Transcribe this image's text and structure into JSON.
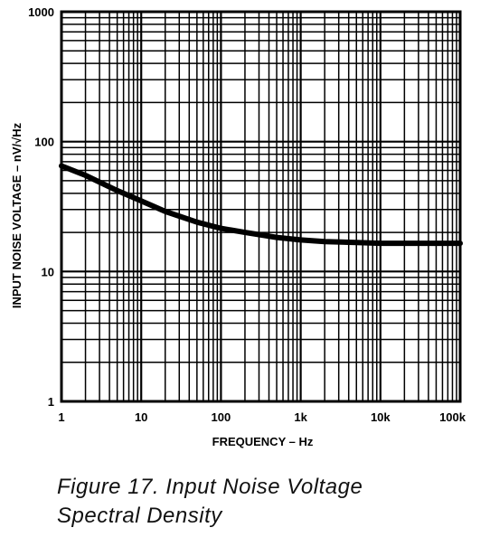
{
  "chart_data": {
    "type": "line",
    "xscale": "log",
    "yscale": "log",
    "xlim": [
      1,
      100000
    ],
    "ylim": [
      1,
      1000
    ],
    "xlabel": "FREQUENCY – Hz",
    "ylabel": "INPUT NOISE VOLTAGE – nV/√Hz",
    "x_ticks": [
      "1",
      "10",
      "100",
      "1k",
      "10k",
      "100k"
    ],
    "y_ticks": [
      "1",
      "10",
      "100",
      "1000"
    ],
    "grid": true,
    "series": [
      {
        "x": [
          1,
          2,
          5,
          10,
          20,
          50,
          100,
          200,
          500,
          1000,
          2000,
          5000,
          10000,
          20000,
          50000,
          100000
        ],
        "y": [
          65,
          55,
          42,
          35,
          29,
          24,
          21.5,
          20,
          18.3,
          17.5,
          17,
          16.7,
          16.5,
          16.5,
          16.5,
          16.5
        ]
      }
    ]
  },
  "caption": {
    "line1": "Figure 17.  Input Noise Voltage",
    "line2": "Spectral Density"
  },
  "colors": {
    "ink": "#000000",
    "background": "#ffffff"
  }
}
